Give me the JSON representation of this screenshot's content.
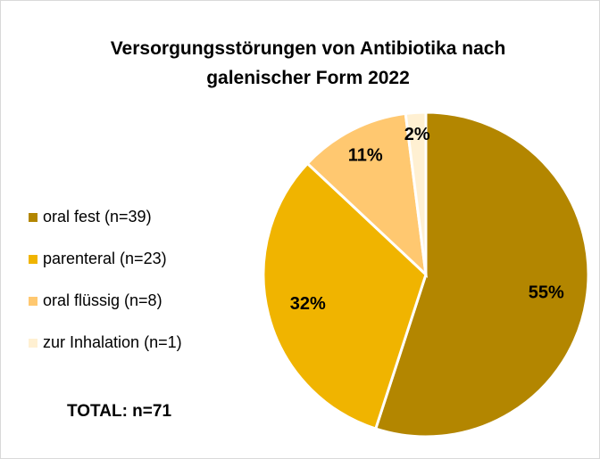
{
  "chart_data": {
    "type": "pie",
    "title": "Versorgungsstörungen von Antibiotika nach galenischer Form 2022",
    "categories": [
      "oral fest (n=39)",
      "parenteral (n=23)",
      "oral flüssig (n=8)",
      "zur Inhalation (n=1)"
    ],
    "values": [
      55,
      32,
      11,
      2
    ],
    "value_labels": [
      "55%",
      "32%",
      "11%",
      "2%"
    ],
    "colors": [
      "#b38600",
      "#f0b400",
      "#ffc870",
      "#fff0d2"
    ],
    "legend": "left",
    "annotation": "TOTAL: n=71"
  }
}
